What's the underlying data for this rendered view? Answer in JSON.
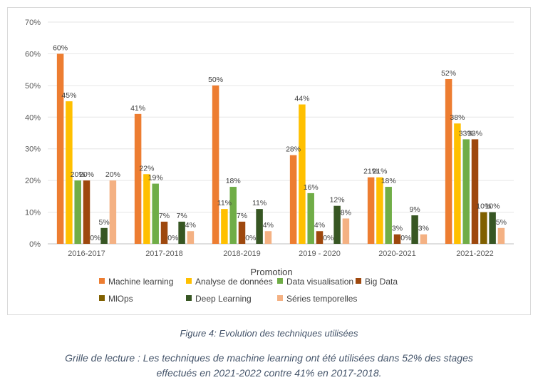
{
  "chart_data": {
    "type": "bar",
    "title": "",
    "xlabel": "Promotion",
    "ylabel": "",
    "ylim": [
      0,
      70
    ],
    "yticks": [
      0,
      10,
      20,
      30,
      40,
      50,
      60,
      70
    ],
    "ytick_suffix": "%",
    "grid": true,
    "legend_position": "bottom",
    "categories": [
      "2016-2017",
      "2017-2018",
      "2018-2019",
      "2019 - 2020",
      "2020-2021",
      "2021-2022"
    ],
    "series": [
      {
        "name": "Machine learning",
        "color": "#ED7D31",
        "values": [
          60,
          41,
          50,
          28,
          21,
          52
        ],
        "labels": [
          "60%",
          "41%",
          "50%",
          "28%",
          "21%",
          "52%"
        ]
      },
      {
        "name": "Analyse de données",
        "color": "#FFC000",
        "values": [
          45,
          22,
          11,
          44,
          21,
          38
        ],
        "labels": [
          "45%",
          "22%",
          "11%",
          "44%",
          "21%",
          "38%"
        ]
      },
      {
        "name": "Data visualisation",
        "color": "#70AD47",
        "values": [
          20,
          19,
          18,
          16,
          18,
          33
        ],
        "labels": [
          "20%",
          "19%",
          "18%",
          "16%",
          "18%",
          "33%"
        ]
      },
      {
        "name": "Big Data",
        "color": "#9E480E",
        "values": [
          20,
          7,
          7,
          4,
          3,
          33
        ],
        "labels": [
          "20%",
          "7%",
          "7%",
          "4%",
          "3%",
          "33%"
        ]
      },
      {
        "name": "MlOps",
        "color": "#806000",
        "values": [
          0,
          0,
          0,
          0,
          0,
          10
        ],
        "labels": [
          "0%",
          "0%",
          "0%",
          "0%",
          "0%",
          "10%"
        ]
      },
      {
        "name": "Deep Learning",
        "color": "#375623",
        "values": [
          5,
          7,
          11,
          12,
          9,
          10
        ],
        "labels": [
          "5%",
          "7%",
          "11%",
          "12%",
          "9%",
          "10%"
        ]
      },
      {
        "name": "Séries temporelles",
        "color": "#F4B183",
        "values": [
          20,
          4,
          4,
          8,
          3,
          5
        ],
        "labels": [
          "20%",
          "4%",
          "4%",
          "8%",
          "3%",
          "5%"
        ]
      }
    ]
  },
  "caption": {
    "figure": "Figure 4: Evolution des techniques utilisées",
    "reading_line1": "Grille de lecture : Les techniques de machine learning ont été utilisées dans 52% des stages",
    "reading_line2": "effectués en 2021-2022 contre 41% en 2017-2018."
  }
}
